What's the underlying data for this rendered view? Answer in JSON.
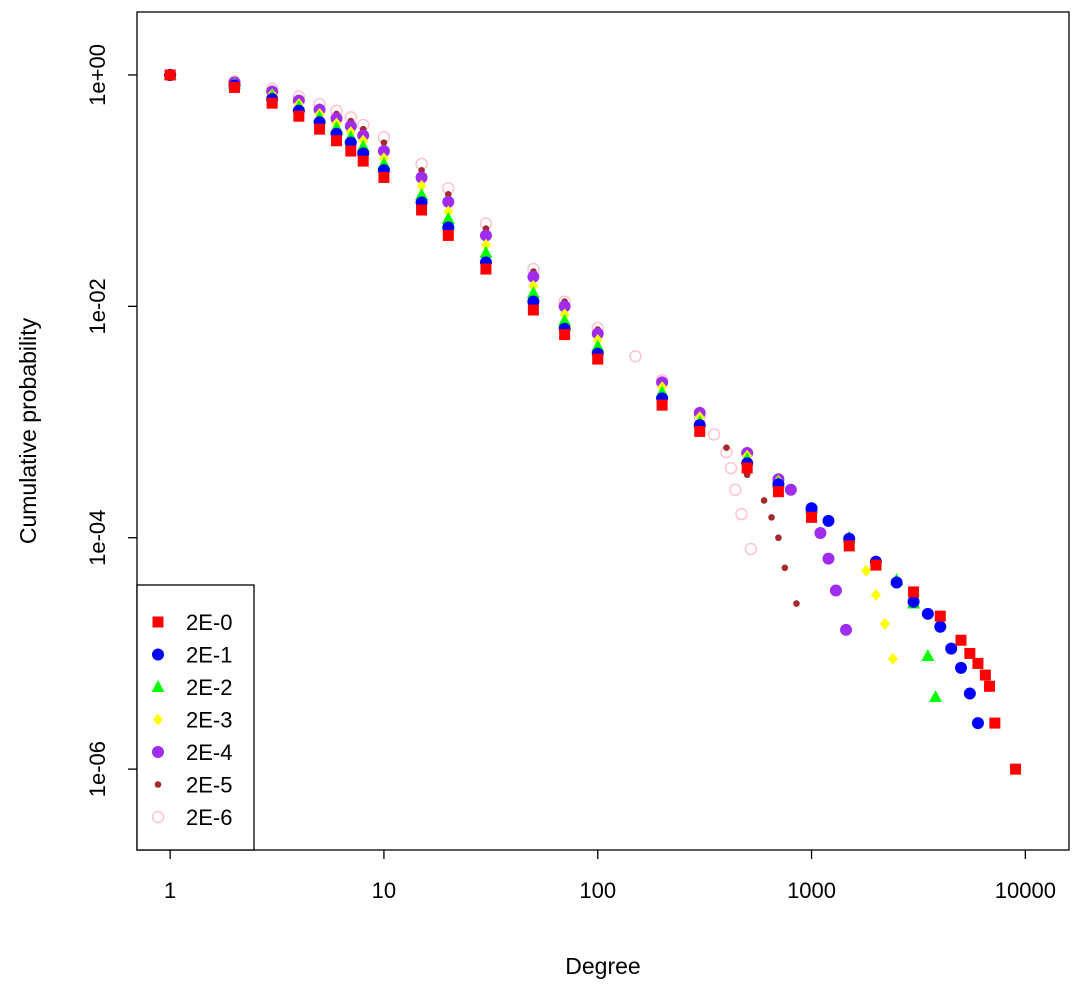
{
  "chart_data": {
    "type": "scatter",
    "xlabel": "Degree",
    "ylabel": "Cumulative probability",
    "x_scale": "log",
    "y_scale": "log",
    "xlim": [
      0.7,
      16000
    ],
    "ylim": [
      2e-07,
      3.5
    ],
    "x_ticks": [
      {
        "value": 1,
        "label": "1"
      },
      {
        "value": 10,
        "label": "10"
      },
      {
        "value": 100,
        "label": "100"
      },
      {
        "value": 1000,
        "label": "1000"
      },
      {
        "value": 10000,
        "label": "10000"
      }
    ],
    "y_ticks": [
      {
        "value": 1,
        "label": "1e+00"
      },
      {
        "value": 0.01,
        "label": "1e-02"
      },
      {
        "value": 0.0001,
        "label": "1e-04"
      },
      {
        "value": 1e-06,
        "label": "1e-06"
      }
    ],
    "grid": false,
    "legend_position": "bottom-left",
    "series": [
      {
        "name": "2E-0",
        "color": "#ff0000",
        "marker": "square",
        "x": [
          1,
          2,
          3,
          4,
          5,
          6,
          7,
          8,
          10,
          15,
          20,
          30,
          50,
          70,
          100,
          200,
          300,
          500,
          700,
          1000,
          1500,
          2000,
          3000,
          4000,
          5000,
          5500,
          6000,
          6500,
          6800,
          7200,
          9000
        ],
        "y": [
          1.0,
          0.78,
          0.57,
          0.44,
          0.34,
          0.27,
          0.22,
          0.18,
          0.13,
          0.068,
          0.041,
          0.021,
          0.0093,
          0.0057,
          0.0035,
          0.0014,
          0.00083,
          0.0004,
          0.00025,
          0.00015,
          8.5e-05,
          5.8e-05,
          3.4e-05,
          2.1e-05,
          1.3e-05,
          1e-05,
          8.2e-06,
          6.5e-06,
          5.2e-06,
          2.5e-06,
          1e-06
        ]
      },
      {
        "name": "2E-1",
        "color": "#0000ff",
        "marker": "circle",
        "x": [
          1,
          2,
          3,
          4,
          5,
          6,
          7,
          8,
          10,
          15,
          20,
          30,
          50,
          70,
          100,
          200,
          300,
          500,
          700,
          1000,
          1200,
          1500,
          2000,
          2500,
          3000,
          3500,
          4000,
          4500,
          5000,
          5500,
          6000
        ],
        "y": [
          1.0,
          0.81,
          0.62,
          0.49,
          0.39,
          0.31,
          0.26,
          0.21,
          0.15,
          0.079,
          0.048,
          0.024,
          0.011,
          0.0064,
          0.0039,
          0.0016,
          0.00094,
          0.00044,
          0.00029,
          0.00018,
          0.00014,
          9.8e-05,
          6.2e-05,
          4.1e-05,
          2.8e-05,
          2.2e-05,
          1.7e-05,
          1.1e-05,
          7.5e-06,
          4.5e-06,
          2.5e-06
        ]
      },
      {
        "name": "2E-2",
        "color": "#00ff00",
        "marker": "triangle",
        "x": [
          1,
          2,
          3,
          4,
          5,
          6,
          7,
          8,
          10,
          15,
          20,
          30,
          50,
          70,
          100,
          200,
          300,
          500,
          700,
          1000,
          1500,
          2000,
          2500,
          3000,
          3500,
          3800
        ],
        "y": [
          1.0,
          0.83,
          0.66,
          0.53,
          0.43,
          0.35,
          0.29,
          0.24,
          0.17,
          0.092,
          0.057,
          0.029,
          0.013,
          0.0075,
          0.0045,
          0.0018,
          0.001,
          0.00048,
          0.0003,
          0.00018,
          0.0001,
          6.2e-05,
          4.3e-05,
          2.7e-05,
          9.5e-06,
          4.2e-06
        ]
      },
      {
        "name": "2E-3",
        "color": "#ffff00",
        "marker": "diamond",
        "x": [
          1,
          2,
          3,
          4,
          5,
          6,
          7,
          8,
          10,
          15,
          20,
          30,
          50,
          70,
          100,
          200,
          300,
          500,
          700,
          1000,
          1500,
          1800,
          2000,
          2200,
          2400
        ],
        "y": [
          1.0,
          0.84,
          0.68,
          0.56,
          0.46,
          0.38,
          0.32,
          0.27,
          0.19,
          0.11,
          0.066,
          0.034,
          0.015,
          0.0085,
          0.0051,
          0.002,
          0.0011,
          0.00051,
          0.00031,
          0.00018,
          8.5e-05,
          5.2e-05,
          3.2e-05,
          1.8e-05,
          9e-06
        ]
      },
      {
        "name": "2E-4",
        "color": "#a02cf0",
        "marker": "circle",
        "x": [
          1,
          2,
          3,
          4,
          5,
          6,
          7,
          8,
          10,
          15,
          20,
          30,
          50,
          70,
          100,
          200,
          300,
          500,
          700,
          800,
          1000,
          1100,
          1200,
          1300,
          1450
        ],
        "y": [
          1.0,
          0.86,
          0.72,
          0.6,
          0.5,
          0.42,
          0.36,
          0.3,
          0.22,
          0.13,
          0.08,
          0.041,
          0.018,
          0.01,
          0.0058,
          0.0022,
          0.0012,
          0.00054,
          0.00032,
          0.00026,
          0.00017,
          0.00011,
          6.6e-05,
          3.5e-05,
          1.6e-05
        ]
      },
      {
        "name": "2E-5",
        "color": "#a52a2a",
        "marker": "dot",
        "x": [
          1,
          2,
          3,
          4,
          5,
          6,
          7,
          8,
          10,
          15,
          20,
          30,
          50,
          70,
          100,
          200,
          300,
          400,
          500,
          600,
          650,
          700,
          750,
          850
        ],
        "y": [
          1.0,
          0.87,
          0.74,
          0.62,
          0.53,
          0.46,
          0.4,
          0.34,
          0.26,
          0.15,
          0.093,
          0.047,
          0.02,
          0.011,
          0.0063,
          0.0023,
          0.0012,
          0.0006,
          0.00035,
          0.00021,
          0.00015,
          0.0001,
          5.5e-05,
          2.7e-05
        ]
      },
      {
        "name": "2E-6",
        "color": "#ffc0cb",
        "marker": "open-circle",
        "x": [
          1,
          2,
          3,
          4,
          5,
          6,
          7,
          8,
          10,
          15,
          20,
          30,
          50,
          70,
          100,
          150,
          200,
          300,
          350,
          400,
          420,
          440,
          470,
          520
        ],
        "y": [
          1.0,
          0.88,
          0.76,
          0.65,
          0.56,
          0.49,
          0.43,
          0.37,
          0.29,
          0.17,
          0.105,
          0.052,
          0.021,
          0.011,
          0.0065,
          0.0037,
          0.0023,
          0.0011,
          0.00078,
          0.00055,
          0.0004,
          0.00026,
          0.00016,
          8e-05
        ]
      }
    ]
  }
}
